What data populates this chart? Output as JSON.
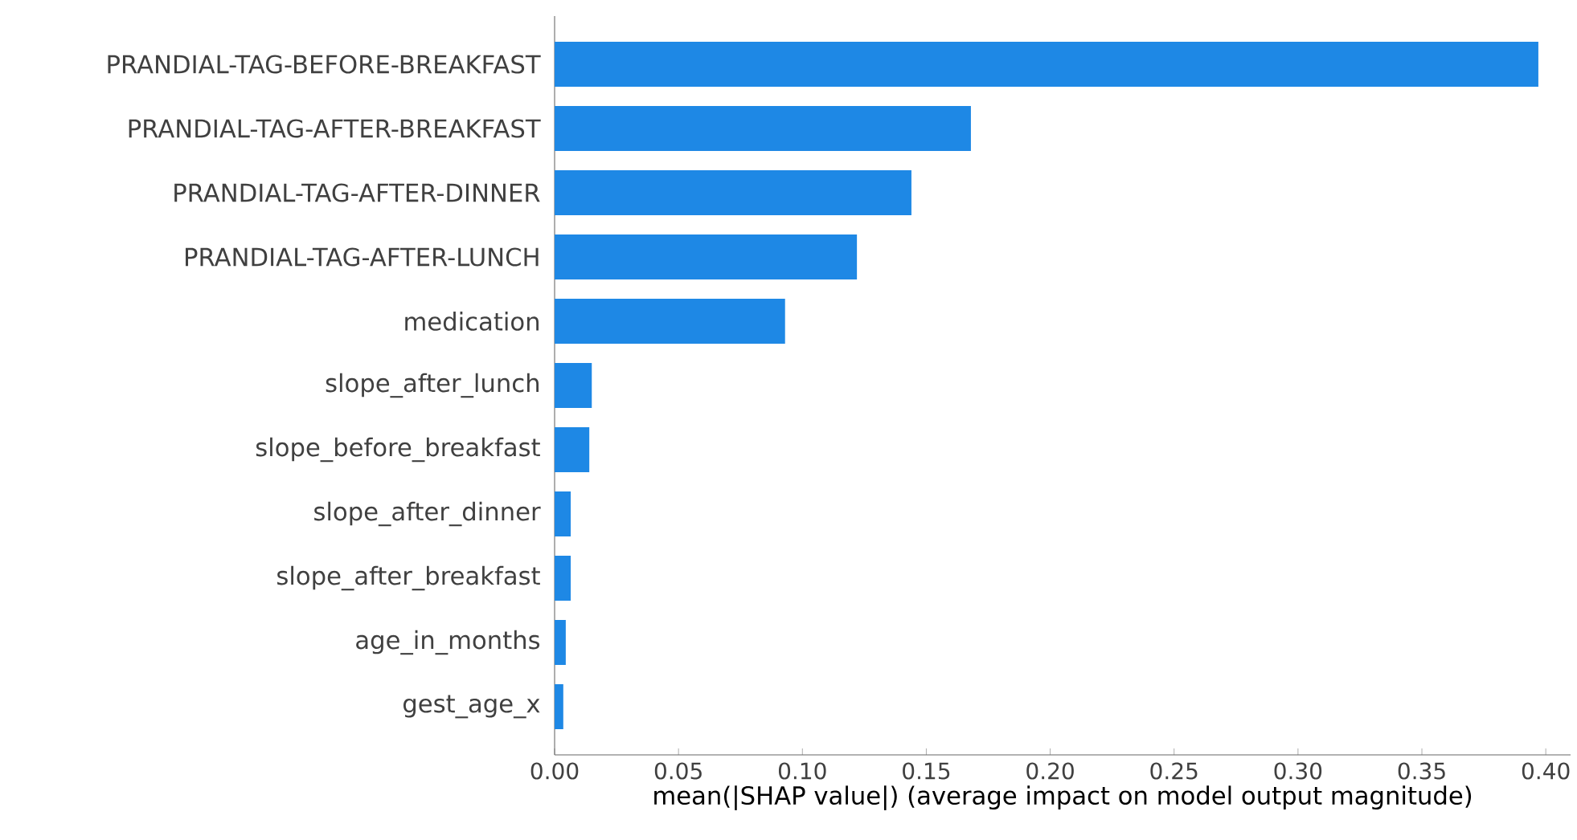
{
  "chart_data": {
    "type": "bar",
    "orientation": "horizontal",
    "xlabel": "mean(|SHAP value|) (average impact on model output magnitude)",
    "categories": [
      "PRANDIAL-TAG-BEFORE-BREAKFAST",
      "PRANDIAL-TAG-AFTER-BREAKFAST",
      "PRANDIAL-TAG-AFTER-DINNER",
      "PRANDIAL-TAG-AFTER-LUNCH",
      "medication",
      "slope_after_lunch",
      "slope_before_breakfast",
      "slope_after_dinner",
      "slope_after_breakfast",
      "age_in_months",
      "gest_age_x"
    ],
    "values": [
      0.397,
      0.168,
      0.144,
      0.122,
      0.093,
      0.015,
      0.014,
      0.0065,
      0.0065,
      0.0045,
      0.0035
    ],
    "color": "#1e88e5",
    "xlim": [
      0,
      0.41
    ],
    "xticks": [
      {
        "value": 0,
        "label": "0.00"
      },
      {
        "value": 0.05,
        "label": "0.05"
      },
      {
        "value": 0.1,
        "label": "0.10"
      },
      {
        "value": 0.15,
        "label": "0.15"
      },
      {
        "value": 0.2,
        "label": "0.20"
      },
      {
        "value": 0.25,
        "label": "0.25"
      },
      {
        "value": 0.3,
        "label": "0.30"
      },
      {
        "value": 0.35,
        "label": "0.35"
      },
      {
        "value": 0.4,
        "label": "0.40"
      }
    ],
    "grid": false
  }
}
